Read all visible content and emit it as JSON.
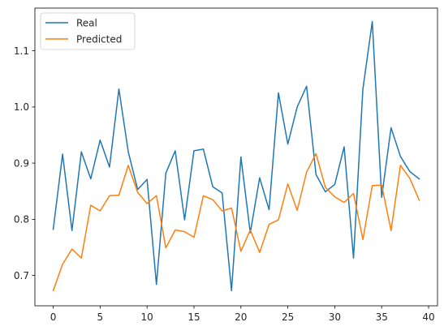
{
  "chart_data": {
    "type": "line",
    "title": "",
    "xlabel": "",
    "ylabel": "",
    "xlim": [
      -1.95,
      40.95
    ],
    "ylim": [
      0.646,
      1.176
    ],
    "xticks": [
      0,
      5,
      10,
      15,
      20,
      25,
      30,
      35,
      40
    ],
    "yticks": [
      0.7,
      0.8,
      0.9,
      1.0,
      1.1
    ],
    "ytick_labels": [
      "0.7",
      "0.8",
      "0.9",
      "1.0",
      "1.1"
    ],
    "grid": false,
    "legend": "top-left",
    "x": [
      0,
      1,
      2,
      3,
      4,
      5,
      6,
      7,
      8,
      9,
      10,
      11,
      12,
      13,
      14,
      15,
      16,
      17,
      18,
      19,
      20,
      21,
      22,
      23,
      24,
      25,
      26,
      27,
      28,
      29,
      30,
      31,
      32,
      33,
      34,
      35,
      36,
      37,
      38,
      39
    ],
    "series": [
      {
        "name": "Real",
        "color": "#1f77b4",
        "values": [
          0.782,
          0.916,
          0.78,
          0.92,
          0.872,
          0.941,
          0.893,
          1.032,
          0.92,
          0.853,
          0.871,
          0.684,
          0.882,
          0.922,
          0.799,
          0.922,
          0.925,
          0.858,
          0.847,
          0.673,
          0.911,
          0.776,
          0.874,
          0.817,
          1.025,
          0.934,
          1.0,
          1.037,
          0.88,
          0.849,
          0.862,
          0.929,
          0.731,
          1.032,
          1.152,
          0.839,
          0.963,
          0.912,
          0.885,
          0.872
        ]
      },
      {
        "name": "Predicted",
        "color": "#ff7f0e",
        "values": [
          0.673,
          0.72,
          0.747,
          0.731,
          0.825,
          0.815,
          0.842,
          0.843,
          0.896,
          0.848,
          0.828,
          0.842,
          0.749,
          0.781,
          0.778,
          0.768,
          0.842,
          0.835,
          0.815,
          0.82,
          0.743,
          0.781,
          0.741,
          0.791,
          0.799,
          0.863,
          0.816,
          0.884,
          0.917,
          0.857,
          0.84,
          0.83,
          0.846,
          0.764,
          0.86,
          0.861,
          0.78,
          0.896,
          0.873,
          0.834
        ]
      }
    ]
  }
}
